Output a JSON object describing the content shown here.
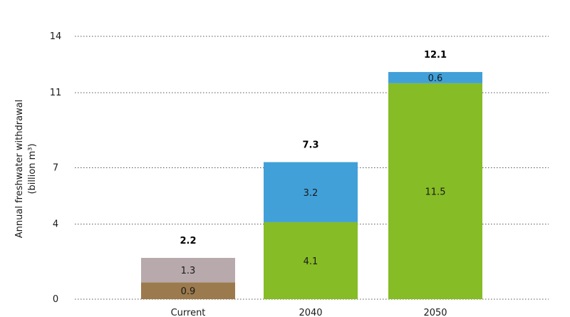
{
  "chart_data": {
    "type": "bar",
    "stacked": true,
    "ylabel_lines": [
      "Annual freshwater withdrawal",
      "(billion m³)"
    ],
    "yticks": [
      0,
      4,
      7,
      11,
      14
    ],
    "ylim": [
      0,
      14
    ],
    "grid": true,
    "categories": [
      "Current",
      "2040",
      "2050"
    ],
    "series": [
      {
        "color": "#9b7a4e",
        "values": [
          0.9,
          null,
          null
        ],
        "labels": [
          "0.9",
          "",
          ""
        ]
      },
      {
        "color": "#b8a9ac",
        "values": [
          1.3,
          null,
          null
        ],
        "labels": [
          "1.3",
          "",
          ""
        ]
      },
      {
        "color": "#86bc25",
        "values": [
          null,
          4.1,
          11.5
        ],
        "labels": [
          "",
          "4.1",
          "11.5"
        ]
      },
      {
        "color": "#41a0d8",
        "values": [
          null,
          3.2,
          0.6
        ],
        "labels": [
          "",
          "3.2",
          "0.6"
        ]
      }
    ],
    "totals": [
      "2.2",
      "7.3",
      "12.1"
    ]
  }
}
